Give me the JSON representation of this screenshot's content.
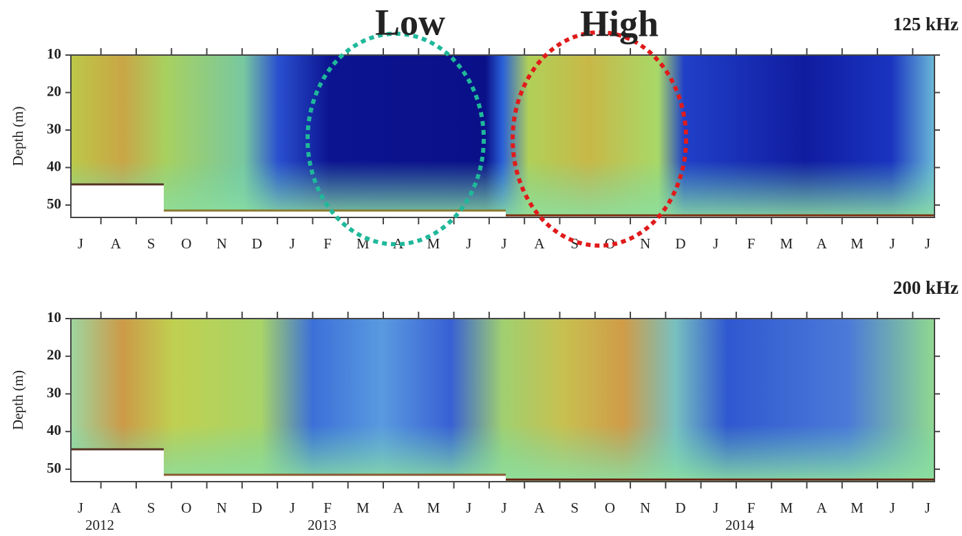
{
  "chart_data": [
    {
      "type": "echogram",
      "title": "125 kHz",
      "y_label": "Depth (m)",
      "categories": [
        "J",
        "A",
        "S",
        "O",
        "N",
        "D",
        "J",
        "F",
        "M",
        "A",
        "M",
        "J",
        "J",
        "A",
        "S",
        "O",
        "N",
        "D",
        "J",
        "F",
        "M",
        "A",
        "M",
        "J",
        "J"
      ],
      "ylim": [
        10,
        53.3
      ],
      "yticks": [
        10,
        20,
        30,
        40,
        50
      ],
      "y_inverted": true,
      "annotations": [
        {
          "text": "Low",
          "color": "#1fb89a"
        },
        {
          "text": "High",
          "color": "#e01b1b"
        }
      ]
    },
    {
      "type": "echogram",
      "title": "200 kHz",
      "y_label": "Depth (m)",
      "categories": [
        "J",
        "A",
        "S",
        "O",
        "N",
        "D",
        "J",
        "F",
        "M",
        "A",
        "M",
        "J",
        "J",
        "A",
        "S",
        "O",
        "N",
        "D",
        "J",
        "F",
        "M",
        "A",
        "M",
        "J",
        "J"
      ],
      "ylim": [
        10,
        53.3
      ],
      "yticks": [
        10,
        20,
        30,
        40,
        50
      ],
      "y_inverted": true,
      "year_labels": [
        "2012",
        "2013",
        "2014"
      ]
    }
  ]
}
